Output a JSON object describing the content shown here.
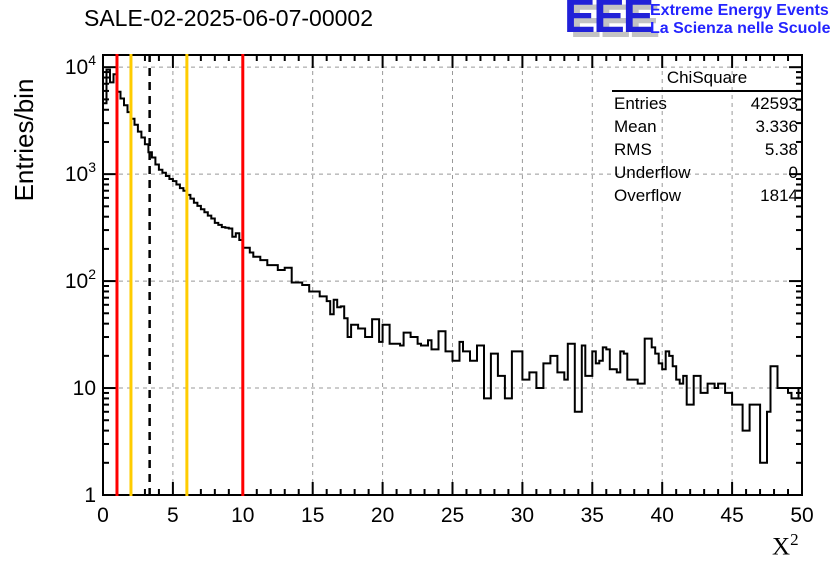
{
  "header": {
    "title": "SALE-02-2025-06-07-00002"
  },
  "logo": {
    "acronym": "EEE",
    "line1": "Extreme Energy Events",
    "line2": "La Scienza nelle Scuole",
    "acronym_color": "#2121d8",
    "text_color": "#2424ff",
    "shadow_color": "#c3c3c3"
  },
  "stats": {
    "title": "ChiSquare",
    "rows": [
      {
        "label": "Entries",
        "value": "42593"
      },
      {
        "label": "Mean",
        "value": "3.336"
      },
      {
        "label": "RMS",
        "value": "5.38"
      },
      {
        "label": "Underflow",
        "value": "0"
      },
      {
        "label": "Overflow",
        "value": "1814"
      }
    ]
  },
  "chart_data": {
    "type": "bar",
    "style": "step-histogram",
    "title": "SALE-02-2025-06-07-00002",
    "xlabel_base": "X",
    "xlabel_sup": "2",
    "ylabel": "Entries/bin",
    "x_range": [
      0,
      50
    ],
    "y_range": [
      1,
      13000
    ],
    "y_scale": "log",
    "grid": true,
    "x_ticks": [
      0,
      5,
      10,
      15,
      20,
      25,
      30,
      35,
      40,
      45,
      50
    ],
    "x_minor_step": 1,
    "y_ticks": [
      1,
      10,
      100,
      1000,
      10000
    ],
    "bin_start": 0,
    "bin_width": 0.25,
    "values": [
      4600,
      9500,
      7200,
      8600,
      5900,
      5100,
      4400,
      3800,
      3300,
      2900,
      2500,
      2200,
      1900,
      1600,
      1430,
      1230,
      1100,
      1030,
      960,
      900,
      860,
      800,
      740,
      700,
      640,
      590,
      540,
      505,
      470,
      440,
      410,
      385,
      350,
      335,
      320,
      315,
      310,
      260,
      280,
      242,
      205,
      205,
      185,
      169,
      169,
      157,
      157,
      141,
      141,
      141,
      127,
      127,
      133,
      133,
      97,
      97,
      97,
      92,
      92,
      80,
      80,
      80,
      72,
      72,
      65,
      49,
      67,
      57,
      58,
      45,
      30,
      39,
      39,
      36,
      36,
      30,
      30,
      44,
      44,
      27,
      39,
      39,
      26,
      26,
      26,
      25,
      33,
      33,
      30,
      30,
      26,
      25,
      25,
      28,
      23,
      23,
      34,
      34,
      22,
      22,
      18,
      18,
      27,
      22,
      22,
      18,
      18,
      25,
      25,
      8,
      8,
      21,
      21,
      13,
      13,
      8,
      8,
      22,
      22,
      22,
      12,
      12,
      14,
      14,
      10,
      10,
      17,
      17,
      20,
      20,
      14,
      14,
      12,
      26,
      26,
      6,
      6,
      25,
      13,
      13,
      22,
      17,
      18,
      24,
      23,
      15,
      15,
      14,
      22,
      21,
      12,
      12,
      12,
      11,
      11,
      29,
      29,
      24,
      21,
      17,
      15,
      22,
      20,
      16,
      12,
      11,
      13,
      7,
      7,
      13,
      13,
      9,
      9,
      11,
      11,
      10,
      11,
      11,
      9,
      9,
      7,
      7,
      7,
      4,
      4,
      7,
      7,
      7,
      2,
      2,
      6,
      16,
      16,
      10,
      10,
      10,
      9,
      8,
      8,
      10
    ],
    "vlines": [
      {
        "x": 1,
        "color": "#ff0000",
        "style": "solid",
        "name": "red-marker-line-1"
      },
      {
        "x": 2,
        "color": "#ffcc00",
        "style": "solid",
        "name": "yellow-marker-line-2"
      },
      {
        "x": 3.336,
        "color": "#000000",
        "style": "dashed",
        "name": "mean-dashed-line"
      },
      {
        "x": 6,
        "color": "#ffcc00",
        "style": "solid",
        "name": "yellow-marker-line-6"
      },
      {
        "x": 10,
        "color": "#ff0000",
        "style": "solid",
        "name": "red-marker-line-10"
      }
    ],
    "colors": {
      "histogram": "#000000",
      "frame": "#000000",
      "grid": "#999999",
      "tick_label": "#000000"
    },
    "legend_position": "none"
  }
}
